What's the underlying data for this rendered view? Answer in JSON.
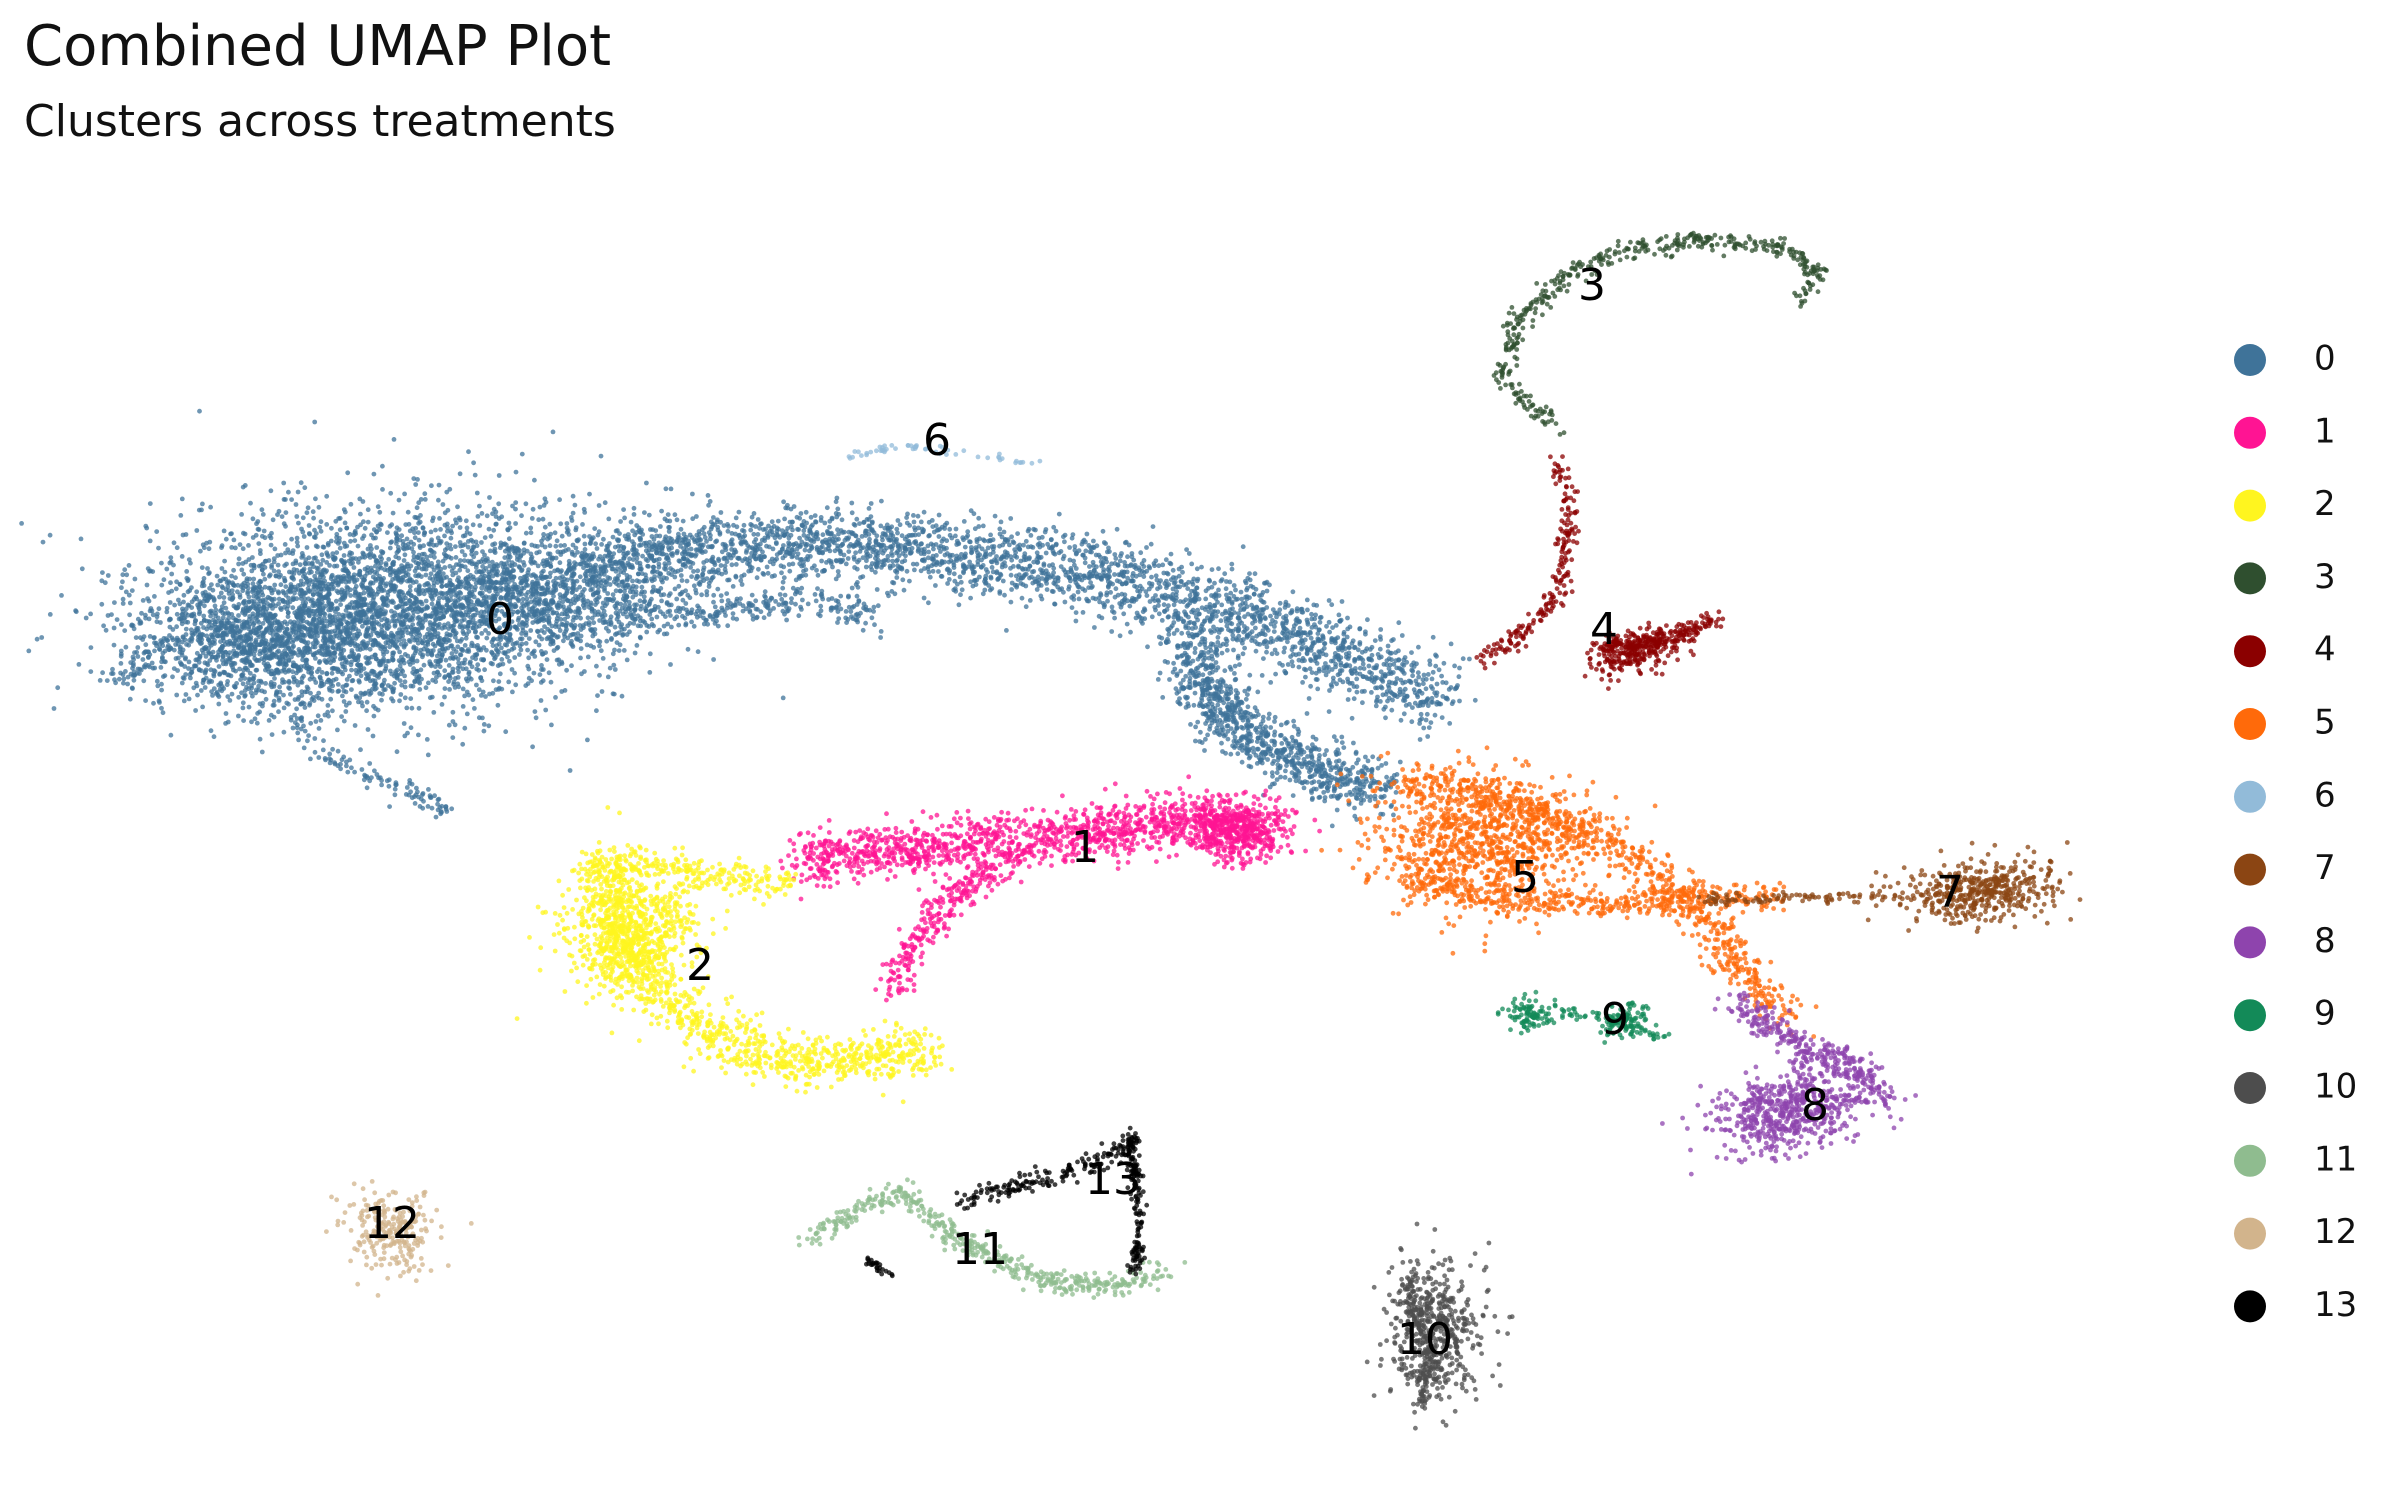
{
  "chart_data": {
    "type": "scatter",
    "title": "Combined UMAP Plot",
    "subtitle": "Clusters across treatments",
    "xlabel": "",
    "ylabel": "",
    "axes_visible": false,
    "grid": false,
    "legend_position": "right",
    "series": [
      {
        "name": "0",
        "color": "#3F7399"
      },
      {
        "name": "1",
        "color": "#FF1493"
      },
      {
        "name": "2",
        "color": "#FFF51F"
      },
      {
        "name": "3",
        "color": "#2F4F2F"
      },
      {
        "name": "4",
        "color": "#8B0000"
      },
      {
        "name": "5",
        "color": "#FF6A0A"
      },
      {
        "name": "6",
        "color": "#92BBD9"
      },
      {
        "name": "7",
        "color": "#8B4513"
      },
      {
        "name": "8",
        "color": "#8E44AD"
      },
      {
        "name": "9",
        "color": "#138A58"
      },
      {
        "name": "10",
        "color": "#4D4D4D"
      },
      {
        "name": "11",
        "color": "#8FBC8F"
      },
      {
        "name": "12",
        "color": "#D2B48C"
      },
      {
        "name": "13",
        "color": "#000000"
      }
    ]
  }
}
